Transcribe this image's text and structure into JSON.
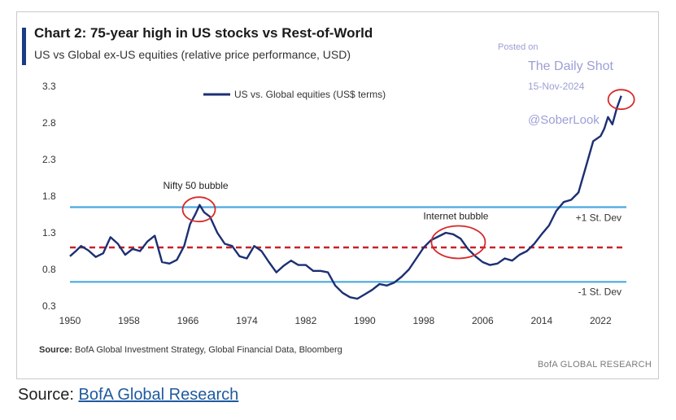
{
  "header": {
    "title": "Chart 2: 75-year high in US stocks vs Rest-of-World",
    "subtitle": "US vs Global ex-US equities (relative price performance, USD)"
  },
  "watermark": {
    "posted": "Posted on",
    "site": "The Daily Shot",
    "date": "15-Nov-2024",
    "handle": "@SoberLook"
  },
  "footer": {
    "source_label": "Source:",
    "source_text": "BofA Global Investment Strategy, Global Financial Data, Bloomberg",
    "brand": "BofA GLOBAL RESEARCH"
  },
  "page_source": {
    "label": "Source:",
    "link_text": "BofA Global Research"
  },
  "colors": {
    "series": "#1c2f73",
    "reference_lines": "#4aa8df",
    "mean_line": "#c8222a",
    "highlight_circles": "#d62a2a",
    "watermark": "#9c9fd6"
  },
  "chart_data": {
    "type": "line",
    "title": "Chart 2: 75-year high in US stocks vs Rest-of-World",
    "subtitle": "US vs Global ex-US equities (relative price performance, USD)",
    "xlim": [
      1950,
      2025.5
    ],
    "ylim": [
      0.3,
      3.3
    ],
    "x_ticks": [
      1950,
      1958,
      1966,
      1974,
      1982,
      1990,
      1998,
      2006,
      2014,
      2022
    ],
    "x_tick_labels": [
      "1950",
      "1958",
      "1966",
      "1974",
      "1982",
      "1990",
      "1998",
      "2006",
      "2014",
      "2022"
    ],
    "y_ticks": [
      0.3,
      0.8,
      1.3,
      1.8,
      2.3,
      2.8,
      3.3
    ],
    "y_tick_labels": [
      "0.3",
      "0.8",
      "1.3",
      "1.8",
      "2.3",
      "2.8",
      "3.3"
    ],
    "grid": false,
    "legend": {
      "position": "top-left",
      "entries": [
        "US vs. Global equities (US$ terms)"
      ]
    },
    "series": [
      {
        "name": "US vs. Global equities (US$ terms)",
        "x": [
          1950,
          1950.8,
          1951.5,
          1952.5,
          1953.5,
          1954.5,
          1955.5,
          1956.5,
          1957.5,
          1958.5,
          1959.5,
          1960.5,
          1961.5,
          1962.5,
          1963.5,
          1964.5,
          1965.5,
          1966.3,
          1967,
          1967.6,
          1968.2,
          1969,
          1970,
          1971,
          1972,
          1973,
          1974,
          1975,
          1976,
          1977,
          1978,
          1979,
          1980,
          1981,
          1982,
          1983,
          1984,
          1985,
          1986,
          1987,
          1988,
          1989,
          1990,
          1991,
          1992,
          1993,
          1994,
          1995,
          1996,
          1997,
          1998,
          1999,
          2000,
          2001,
          2002,
          2003,
          2004,
          2005,
          2006,
          2007,
          2008,
          2009,
          2010,
          2011,
          2012,
          2013,
          2014,
          2015,
          2016,
          2017,
          2018,
          2019,
          2020,
          2021,
          2022,
          2022.5,
          2023,
          2023.6,
          2024.2,
          2024.8
        ],
        "y": [
          0.98,
          1.05,
          1.12,
          1.06,
          0.97,
          1.02,
          1.24,
          1.15,
          1.0,
          1.08,
          1.05,
          1.18,
          1.26,
          0.9,
          0.88,
          0.93,
          1.12,
          1.42,
          1.55,
          1.68,
          1.58,
          1.52,
          1.3,
          1.15,
          1.12,
          0.98,
          0.95,
          1.12,
          1.05,
          0.9,
          0.76,
          0.85,
          0.92,
          0.86,
          0.86,
          0.78,
          0.78,
          0.76,
          0.58,
          0.48,
          0.42,
          0.4,
          0.46,
          0.52,
          0.6,
          0.58,
          0.62,
          0.7,
          0.8,
          0.95,
          1.1,
          1.2,
          1.25,
          1.3,
          1.28,
          1.22,
          1.08,
          0.98,
          0.9,
          0.86,
          0.88,
          0.95,
          0.92,
          1.0,
          1.05,
          1.15,
          1.28,
          1.4,
          1.6,
          1.72,
          1.75,
          1.85,
          2.2,
          2.55,
          2.62,
          2.72,
          2.88,
          2.78,
          3.0,
          3.17
        ]
      }
    ],
    "reference_lines": [
      {
        "label": "+1 St. Dev",
        "y": 1.65,
        "style": "solid"
      },
      {
        "label": "",
        "y": 1.1,
        "style": "dashed"
      },
      {
        "label": "-1 St. Dev",
        "y": 0.63,
        "style": "solid"
      }
    ],
    "annotations": [
      {
        "text": "Nifty 50 bubble",
        "x": 1967.5,
        "y": 1.62
      },
      {
        "text": "Internet bubble",
        "x": 2002.7,
        "y": 1.15
      },
      {
        "text": "",
        "x": 2024.8,
        "y": 3.12
      }
    ]
  }
}
